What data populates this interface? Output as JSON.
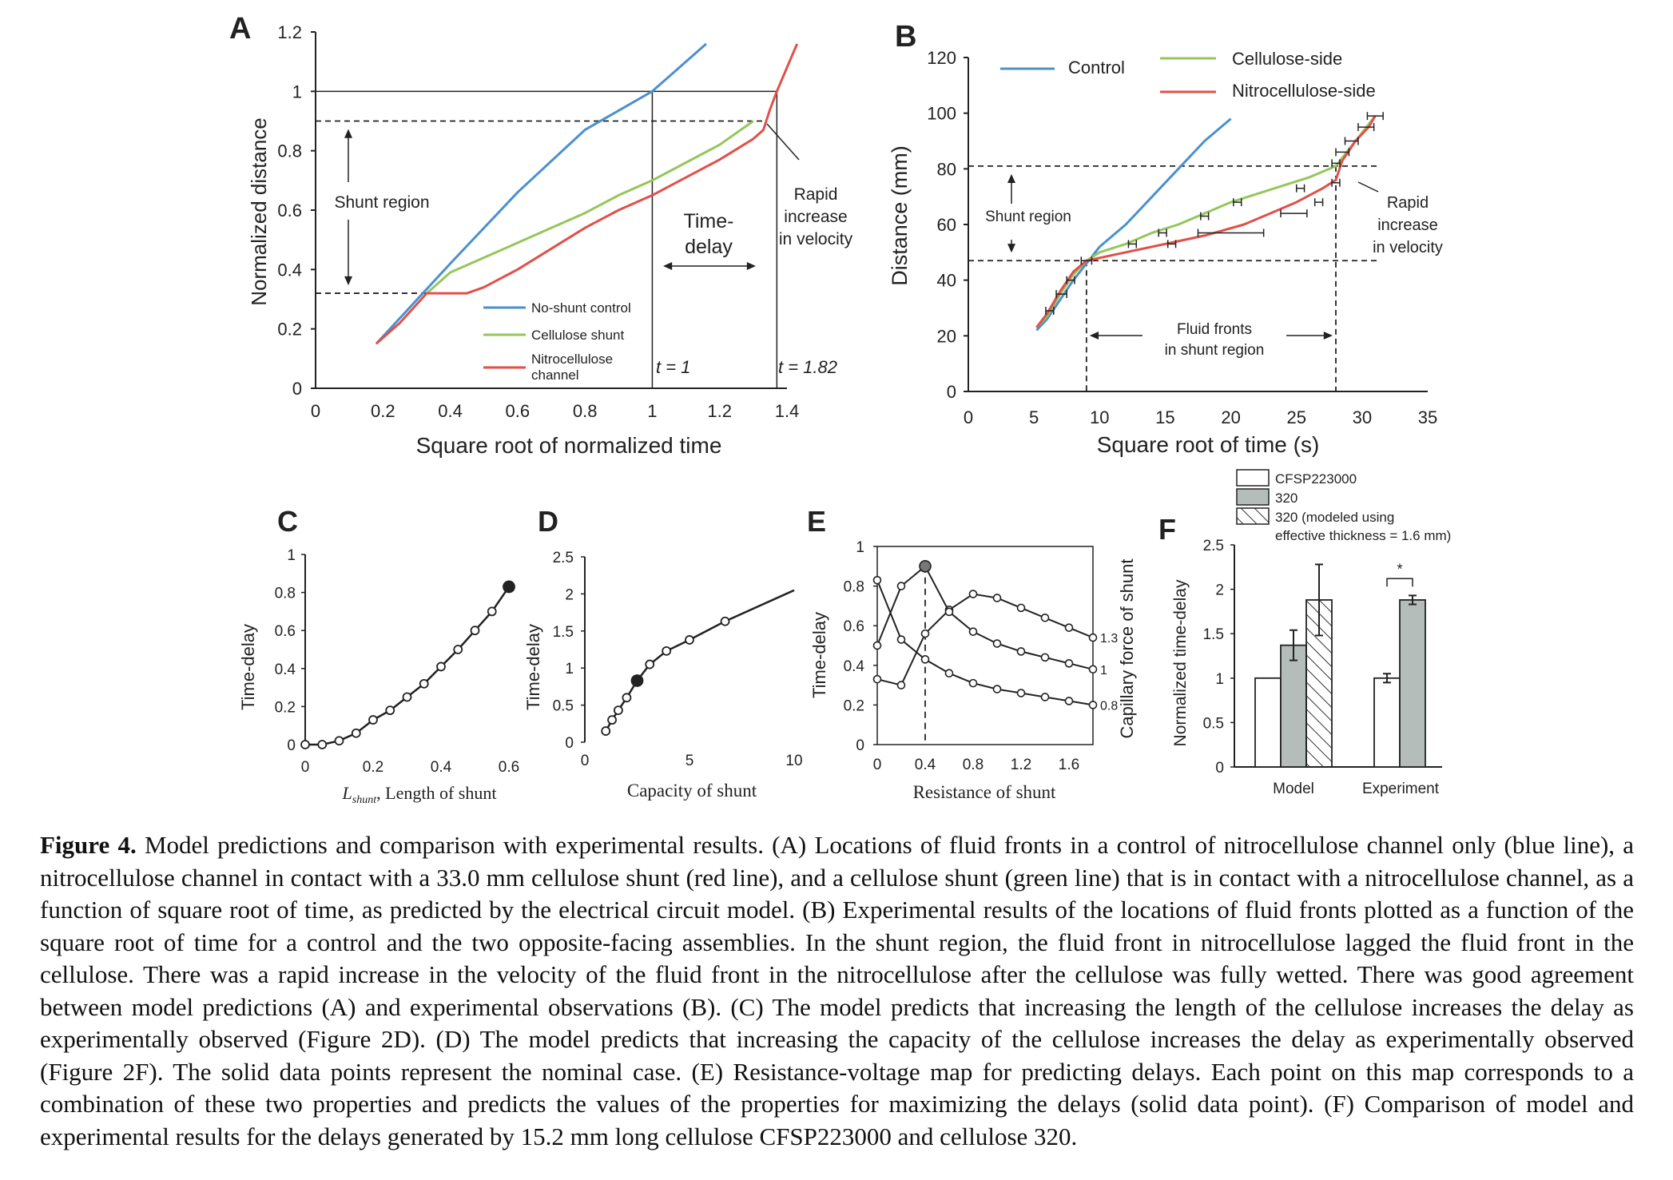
{
  "figure": {
    "caption_label": "Figure 4.",
    "caption_text": " Model predictions and comparison with experimental results. (A) Locations of fluid fronts in a control of nitrocellulose channel only (blue line), a nitrocellulose channel in contact with a 33.0 mm cellulose shunt (red line), and a cellulose shunt (green line) that is in contact with a nitrocellulose channel, as a function of square root of time, as predicted by the electrical circuit model. (B) Experimental results of the locations of fluid fronts plotted as a function of the square root of time for a control and the two opposite-facing assemblies. In the shunt region, the fluid front in nitrocellulose lagged the fluid front in the cellulose. There was a rapid increase in the velocity of the fluid front in the nitrocellulose after the cellulose was fully wetted. There was good agreement between model predictions (A) and experimental observations (B). (C) The model predicts that increasing the length of the cellulose increases the delay as experimentally observed (Figure 2D). (D) The model predicts that increasing the capacity of the cellulose increases the delay as experimentally observed (Figure 2F). The solid data points represent the nominal case. (E) Resistance-voltage map for predicting delays. Each point on this map corresponds to a combination of these two properties and predicts the values of the properties for maximizing the delays (solid data point). (F) Comparison of model and experimental results for the delays generated by 15.2 mm long cellulose CFSP223000 and cellulose 320."
  },
  "colors": {
    "blue": "#4a90cf",
    "green": "#95c65a",
    "red": "#e0504a",
    "gray": "#b5bdbb"
  },
  "chart_data": [
    {
      "panel": "A",
      "type": "line",
      "xlabel": "Square root of normalized time",
      "ylabel": "Normalized distance",
      "xlim": [
        0,
        1.4
      ],
      "ylim": [
        0,
        1.2
      ],
      "xticks": [
        "0",
        "0.2",
        "0.4",
        "0.6",
        "0.8",
        "1",
        "1.2",
        "1.4"
      ],
      "yticks": [
        "0",
        "0.2",
        "0.4",
        "0.6",
        "0.8",
        "1",
        "1.2"
      ],
      "series": [
        {
          "name": "No-shunt control",
          "color": "#4a90cf",
          "points": [
            [
              0.18,
              0.15
            ],
            [
              0.4,
              0.42
            ],
            [
              0.6,
              0.66
            ],
            [
              0.8,
              0.87
            ],
            [
              1.0,
              1.0
            ],
            [
              1.08,
              1.08
            ],
            [
              1.16,
              1.16
            ]
          ]
        },
        {
          "name": "Cellulose shunt",
          "color": "#95c65a",
          "points": [
            [
              0.33,
              0.32
            ],
            [
              0.4,
              0.39
            ],
            [
              0.5,
              0.44
            ],
            [
              0.6,
              0.49
            ],
            [
              0.7,
              0.54
            ],
            [
              0.8,
              0.59
            ],
            [
              0.9,
              0.65
            ],
            [
              1.0,
              0.7
            ],
            [
              1.1,
              0.76
            ],
            [
              1.2,
              0.82
            ],
            [
              1.3,
              0.9
            ]
          ]
        },
        {
          "name": "Nitrocellulose channel",
          "color": "#e0504a",
          "points": [
            [
              0.18,
              0.15
            ],
            [
              0.25,
              0.22
            ],
            [
              0.33,
              0.32
            ],
            [
              0.4,
              0.32
            ],
            [
              0.45,
              0.32
            ],
            [
              0.5,
              0.34
            ],
            [
              0.6,
              0.4
            ],
            [
              0.7,
              0.47
            ],
            [
              0.8,
              0.54
            ],
            [
              0.9,
              0.6
            ],
            [
              1.0,
              0.65
            ],
            [
              1.1,
              0.71
            ],
            [
              1.2,
              0.77
            ],
            [
              1.3,
              0.84
            ],
            [
              1.33,
              0.87
            ],
            [
              1.35,
              0.94
            ],
            [
              1.37,
              1.0
            ],
            [
              1.4,
              1.08
            ],
            [
              1.43,
              1.16
            ]
          ]
        }
      ],
      "shunt_region": [
        0.32,
        0.9
      ],
      "annotations": {
        "shunt": "Shunt region",
        "delay": "Time-\ndelay",
        "rapid": "Rapid\nincrease\nin velocity",
        "t1": "t = 1",
        "t2": "t = 1.82"
      }
    },
    {
      "panel": "B",
      "type": "line",
      "xlabel": "Square root of time (s)",
      "ylabel": "Distance (mm)",
      "xlim": [
        0,
        35
      ],
      "ylim": [
        0,
        120
      ],
      "xticks": [
        "0",
        "5",
        "10",
        "15",
        "20",
        "25",
        "30",
        "35"
      ],
      "yticks": [
        "0",
        "20",
        "40",
        "60",
        "80",
        "100",
        "120"
      ],
      "series": [
        {
          "name": "Control",
          "color": "#4a90cf",
          "points": [
            [
              5.2,
              22
            ],
            [
              6,
              26
            ],
            [
              7,
              33
            ],
            [
              8,
              40
            ],
            [
              9,
              46
            ],
            [
              10,
              52
            ],
            [
              12,
              60
            ],
            [
              14,
              70
            ],
            [
              16,
              80
            ],
            [
              18,
              90
            ],
            [
              20,
              98
            ]
          ]
        },
        {
          "name": "Cellulose-side",
          "color": "#95c65a",
          "points": [
            [
              5.2,
              23
            ],
            [
              6,
              27
            ],
            [
              7,
              35
            ],
            [
              8,
              42
            ],
            [
              9,
              47
            ],
            [
              10,
              50
            ],
            [
              12,
              53
            ],
            [
              14,
              57
            ],
            [
              16,
              60
            ],
            [
              18,
              64
            ],
            [
              20,
              68
            ],
            [
              22,
              71
            ],
            [
              24,
              74
            ],
            [
              26,
              77
            ],
            [
              28,
              81
            ],
            [
              29,
              87
            ],
            [
              30,
              93
            ],
            [
              31,
              99
            ]
          ]
        },
        {
          "name": "Nitrocellulose-side",
          "color": "#e0504a",
          "points": [
            [
              5.2,
              23
            ],
            [
              6,
              28
            ],
            [
              7,
              36
            ],
            [
              8,
              43
            ],
            [
              9,
              47
            ],
            [
              10,
              48
            ],
            [
              12,
              50
            ],
            [
              15,
              53
            ],
            [
              18,
              56
            ],
            [
              21,
              60
            ],
            [
              23,
              64
            ],
            [
              25,
              68
            ],
            [
              27,
              73
            ],
            [
              28,
              76
            ],
            [
              28.5,
              83
            ],
            [
              29.5,
              90
            ],
            [
              30.5,
              95
            ],
            [
              31,
              99
            ]
          ]
        }
      ],
      "errorbars": [
        [
          6.2,
          29,
          0.3
        ],
        [
          7.1,
          35,
          0.4
        ],
        [
          7.8,
          40,
          0.3
        ],
        [
          9,
          47,
          0.4
        ],
        [
          12.5,
          53,
          0.3
        ],
        [
          15.5,
          53,
          0.3
        ],
        [
          14.8,
          57,
          0.3
        ],
        [
          18,
          63,
          0.3
        ],
        [
          20.5,
          68,
          0.3
        ],
        [
          20,
          57,
          2.5
        ],
        [
          24.8,
          64,
          1
        ],
        [
          25.3,
          73,
          0.3
        ],
        [
          26.7,
          68,
          0.3
        ],
        [
          28,
          75,
          0.3
        ],
        [
          28,
          82,
          0.3
        ],
        [
          28.5,
          86,
          0.5
        ],
        [
          29.2,
          90,
          0.5
        ],
        [
          30.3,
          95,
          0.6
        ],
        [
          31,
          99,
          0.6
        ]
      ],
      "shunt_region": [
        47,
        81
      ],
      "vlines": [
        9,
        28
      ],
      "annotations": {
        "shunt": "Shunt region",
        "fronts": "Fluid fronts\nin shunt region",
        "rapid": "Rapid\nincrease\nin velocity"
      }
    },
    {
      "panel": "C",
      "type": "scatter",
      "xlabel_prefix": "L",
      "xlabel_sub": "shunt",
      "xlabel": ", Length of shunt",
      "ylabel": "Time-delay",
      "xlim": [
        0,
        0.6
      ],
      "ylim": [
        0,
        1
      ],
      "xticks": [
        "0",
        "0.2",
        "0.4",
        "0.6"
      ],
      "yticks": [
        "0",
        "0.2",
        "0.4",
        "0.6",
        "0.8",
        "1"
      ],
      "points": [
        [
          0,
          0
        ],
        [
          0.05,
          0
        ],
        [
          0.1,
          0.02
        ],
        [
          0.15,
          0.06
        ],
        [
          0.2,
          0.13
        ],
        [
          0.25,
          0.18
        ],
        [
          0.3,
          0.25
        ],
        [
          0.35,
          0.32
        ],
        [
          0.4,
          0.41
        ],
        [
          0.45,
          0.5
        ],
        [
          0.5,
          0.6
        ],
        [
          0.55,
          0.7
        ],
        [
          0.6,
          0.83
        ]
      ],
      "solid_index": 12
    },
    {
      "panel": "D",
      "type": "scatter",
      "xlabel": "Capacity of shunt",
      "ylabel": "Time-delay",
      "xlim": [
        0,
        10
      ],
      "ylim": [
        0,
        2.5
      ],
      "xticks": [
        "0",
        "5",
        "10"
      ],
      "yticks": [
        "0",
        "0.5",
        "1",
        "1.5",
        "2",
        "2.5"
      ],
      "points": [
        [
          1,
          0.15
        ],
        [
          1.3,
          0.3
        ],
        [
          1.6,
          0.43
        ],
        [
          2,
          0.6
        ],
        [
          2.5,
          0.83
        ],
        [
          3.1,
          1.05
        ],
        [
          3.9,
          1.23
        ],
        [
          5,
          1.38
        ],
        [
          6.7,
          1.63
        ]
      ],
      "line_end": [
        10,
        2.05
      ],
      "solid_index": 4
    },
    {
      "panel": "E",
      "type": "line",
      "xlabel": "Resistance of shunt",
      "ylabel": "Time-delay",
      "ylabel_right": "Capillary force of shunt",
      "xlim": [
        0,
        1.8
      ],
      "ylim": [
        0,
        1
      ],
      "xticks": [
        "0",
        "0.4",
        "0.8",
        "1.2",
        "1.6"
      ],
      "yticks": [
        "0",
        "0.2",
        "0.4",
        "0.6",
        "0.8",
        "1"
      ],
      "vline": 0.4,
      "series": [
        {
          "name": "1.3",
          "points": [
            [
              0,
              0.33
            ],
            [
              0.2,
              0.3
            ],
            [
              0.4,
              0.56
            ],
            [
              0.6,
              0.68
            ],
            [
              0.8,
              0.76
            ],
            [
              1.0,
              0.74
            ],
            [
              1.2,
              0.69
            ],
            [
              1.4,
              0.64
            ],
            [
              1.6,
              0.59
            ],
            [
              1.8,
              0.54
            ]
          ]
        },
        {
          "name": "1",
          "points": [
            [
              0,
              0.5
            ],
            [
              0.2,
              0.8
            ],
            [
              0.4,
              0.9
            ],
            [
              0.6,
              0.67
            ],
            [
              0.8,
              0.57
            ],
            [
              1.0,
              0.51
            ],
            [
              1.2,
              0.47
            ],
            [
              1.4,
              0.44
            ],
            [
              1.6,
              0.41
            ],
            [
              1.8,
              0.38
            ]
          ]
        },
        {
          "name": "0.8",
          "points": [
            [
              0,
              0.83
            ],
            [
              0.2,
              0.53
            ],
            [
              0.4,
              0.43
            ],
            [
              0.6,
              0.36
            ],
            [
              0.8,
              0.31
            ],
            [
              1.0,
              0.28
            ],
            [
              1.2,
              0.26
            ],
            [
              1.4,
              0.24
            ],
            [
              1.6,
              0.22
            ],
            [
              1.8,
              0.2
            ]
          ]
        }
      ],
      "solid_point": [
        0.4,
        0.9
      ]
    },
    {
      "panel": "F",
      "type": "bar",
      "ylabel": "Normalized time-delay",
      "ylim": [
        0,
        2.5
      ],
      "yticks": [
        "0",
        "0.5",
        "1",
        "1.5",
        "2",
        "2.5"
      ],
      "categories": [
        "Model",
        "Experiment"
      ],
      "legend": [
        "CFSP223000",
        "320",
        "320 (modeled using",
        "effective thickness = 1.6 mm)"
      ],
      "series": [
        {
          "name": "CFSP223000",
          "values": [
            1.0,
            1.0
          ],
          "errors": [
            0,
            0.05
          ]
        },
        {
          "name": "320",
          "values": [
            1.37,
            1.88
          ],
          "errors": [
            0.17,
            0.05
          ]
        },
        {
          "name": "320 (modeled using effective thickness = 1.6 mm)",
          "values": [
            1.88,
            null
          ],
          "errors": [
            0.4,
            null
          ]
        }
      ],
      "significance": "*"
    }
  ]
}
